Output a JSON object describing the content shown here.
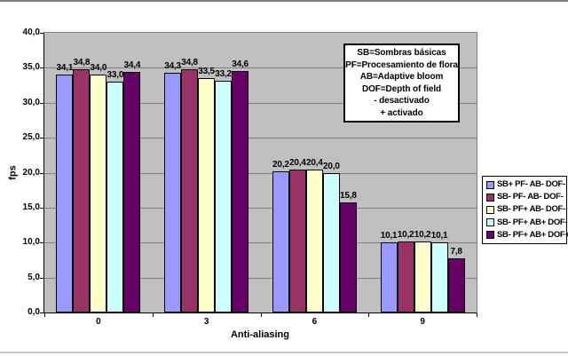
{
  "chart_data": {
    "type": "bar",
    "title": "",
    "xlabel": "Anti-aliasing",
    "ylabel": "fps",
    "categories": [
      "0",
      "3",
      "6",
      "9"
    ],
    "series": [
      {
        "name": "SB+ PF- AB- DOF-",
        "color": "#9999FF",
        "values": [
          34.1,
          34.3,
          20.2,
          10.1
        ]
      },
      {
        "name": "SB- PF- AB- DOF-",
        "color": "#993366",
        "values": [
          34.8,
          34.8,
          20.4,
          10.2
        ]
      },
      {
        "name": "SB- PF+ AB- DOF-",
        "color": "#FFFFCC",
        "values": [
          34.0,
          33.5,
          20.4,
          10.2
        ]
      },
      {
        "name": "SB- PF+ AB+ DOF-",
        "color": "#CCFFFF",
        "values": [
          33.0,
          33.2,
          20.0,
          10.1
        ]
      },
      {
        "name": "SB- PF+ AB+ DOF+",
        "color": "#660066",
        "values": [
          34.4,
          34.6,
          15.8,
          7.8
        ]
      }
    ],
    "ylim": [
      0,
      40
    ],
    "ytick_step": 5,
    "ytick_labels": [
      "0,0",
      "5,0",
      "10,0",
      "15,0",
      "20,0",
      "25,0",
      "30,0",
      "35,0",
      "40,0"
    ],
    "decimal_separator": ",",
    "grid": true,
    "legend_position": "right",
    "plot_bg_color": "#C0C0C0",
    "gridline_color": "#808080",
    "bar_border_color": "#000000",
    "annotation": {
      "lines": [
        "SB=Sombras básicas",
        "PF=Procesamiento de flora",
        "AB=Adaptive bloom",
        "DOF=Depth of field",
        "- desactivado",
        "+ activado"
      ]
    }
  }
}
